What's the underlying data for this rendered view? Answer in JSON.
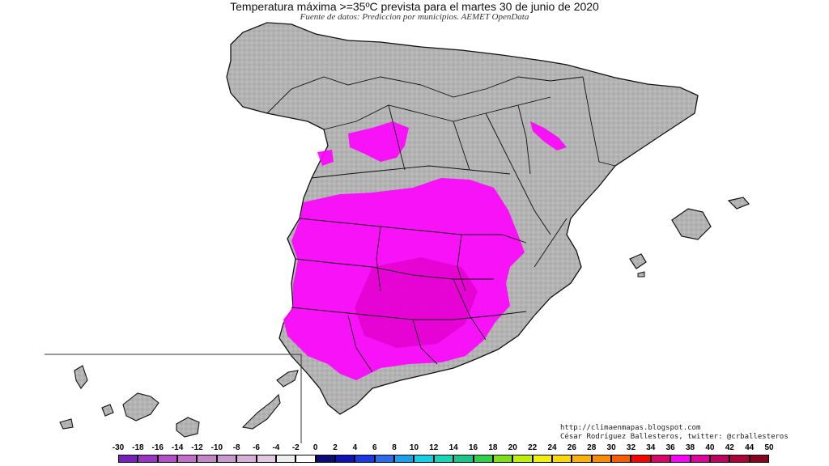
{
  "title": "Temperatura máxima >=35ºC prevista para el martes 30 de junio de 2020",
  "subtitle": "Fuente de datos: Prediccion por municipios. AEMET OpenData",
  "credits": {
    "line1": "http://climaenmapas.blogspot.com",
    "line2": "César Rodríguez Ballesteros, twitter: @crballesteros"
  },
  "scale": {
    "labels": [
      "-30",
      "-18",
      "-16",
      "-14",
      "-12",
      "-10",
      "-8",
      "-6",
      "-4",
      "-2",
      "0",
      "2",
      "4",
      "6",
      "8",
      "10",
      "12",
      "14",
      "16",
      "18",
      "20",
      "22",
      "24",
      "26",
      "28",
      "30",
      "32",
      "34",
      "36",
      "38",
      "40",
      "42",
      "44",
      "50"
    ],
    "colors": [
      "#7a1fbf",
      "#9a33c7",
      "#b54fc9",
      "#c46dce",
      "#c586c8",
      "#c99ad0",
      "#d6b0d6",
      "#e2c8e2",
      "#eeeeee",
      "#ffffff",
      "#0b0b7a",
      "#1010b8",
      "#1a37e8",
      "#2a6cf0",
      "#1aa0f0",
      "#12d0e8",
      "#14d6b8",
      "#18c78a",
      "#2bd24a",
      "#7fe018",
      "#c0f000",
      "#f0f000",
      "#ffd800",
      "#ffb000",
      "#ff8a00",
      "#ff5a00",
      "#ff0000",
      "#e0006a",
      "#ff00ff",
      "#e000a0",
      "#c00060",
      "#b0003c",
      "#8b0020"
    ],
    "highlight_color": "#ff00ff"
  },
  "regions": {
    "land_color": "#b8b8b8",
    "border_color": "#111111"
  }
}
